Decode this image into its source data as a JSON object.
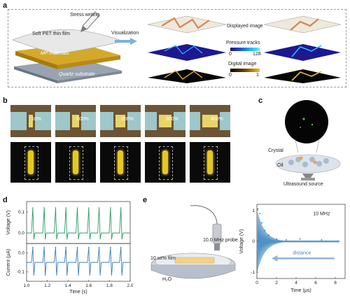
{
  "panels": {
    "a": {
      "label": "a",
      "stress_writing": "Stress writing",
      "pet_film": "Soft PET thin film",
      "mp_materials": "MP materials",
      "quartz": "Quartz substrate",
      "arrow_label": "Visualization",
      "displayed_image": "Displayed image",
      "pressure_tracks": "Pressure tracks",
      "pressure_min": "0",
      "pressure_max": "128",
      "digital_image": "Digital image",
      "digital_min": "0",
      "digital_max": "1"
    },
    "b": {
      "label": "b",
      "strains": [
        "10%",
        "100%",
        "200%",
        "300%",
        "400%"
      ]
    },
    "c": {
      "label": "c",
      "crystal": "Crystal",
      "oil": "Oil",
      "source": "Ultrasound source"
    },
    "d": {
      "label": "d",
      "ylabel_top": "Voltage (V)",
      "ylabel_bottom": "Current (μA)",
      "xlabel": "Time (s)",
      "xticks": [
        "1.0",
        "1.2",
        "1.4",
        "1.6",
        "1.8",
        "2.0"
      ],
      "yticks_top": [
        "0.1",
        "0.0"
      ],
      "yticks_bottom": [
        "0.0",
        "-0.1"
      ]
    },
    "e": {
      "label": "e",
      "probe": "10.0 MHz probe",
      "film": "10 wt% film",
      "water": "H₂O",
      "freq_label": "10 MHz",
      "distance": "distance",
      "ylabel": "Voltage (V)",
      "xlabel": "Time (μs)",
      "xticks": [
        "0",
        "2",
        "4",
        "6",
        "8"
      ],
      "yticks": [
        "1",
        "0",
        "-1"
      ]
    }
  },
  "chart_data": [
    {
      "type": "line",
      "xlabel": "Time (s)",
      "ylabel": "Voltage (V)",
      "xlim": [
        1.0,
        2.0
      ],
      "ylim": [
        -0.05,
        0.15
      ],
      "series": [
        {
          "x": [
            1.06,
            1.17,
            1.28,
            1.38,
            1.49,
            1.6,
            1.7,
            1.81,
            1.91
          ],
          "values": [
            0.12,
            0.12,
            0.12,
            0.12,
            0.12,
            0.12,
            0.12,
            0.12,
            0.12
          ]
        }
      ]
    },
    {
      "type": "line",
      "xlabel": "Time (s)",
      "ylabel": "Current (μA)",
      "xlim": [
        1.0,
        2.0
      ],
      "ylim": [
        -0.15,
        0.05
      ],
      "series": [
        {
          "x": [
            1.06,
            1.17,
            1.28,
            1.38,
            1.49,
            1.6,
            1.7,
            1.81,
            1.91
          ],
          "values": [
            0.03,
            0.03,
            0.03,
            0.03,
            0.03,
            0.03,
            0.03,
            0.03,
            0.03
          ]
        }
      ]
    },
    {
      "type": "line",
      "xlabel": "Time (μs)",
      "ylabel": "Voltage (V)",
      "xlim": [
        0,
        9
      ],
      "ylim": [
        -1.2,
        1.2
      ],
      "series": [
        {
          "x": [
            0.1,
            0.3,
            0.5,
            0.8,
            1.2,
            2.0,
            3.0,
            4.4,
            6.6
          ],
          "values": [
            1.05,
            0.9,
            0.6,
            0.35,
            0.2,
            0.08,
            0.05,
            0.08,
            0.05
          ]
        }
      ]
    }
  ]
}
